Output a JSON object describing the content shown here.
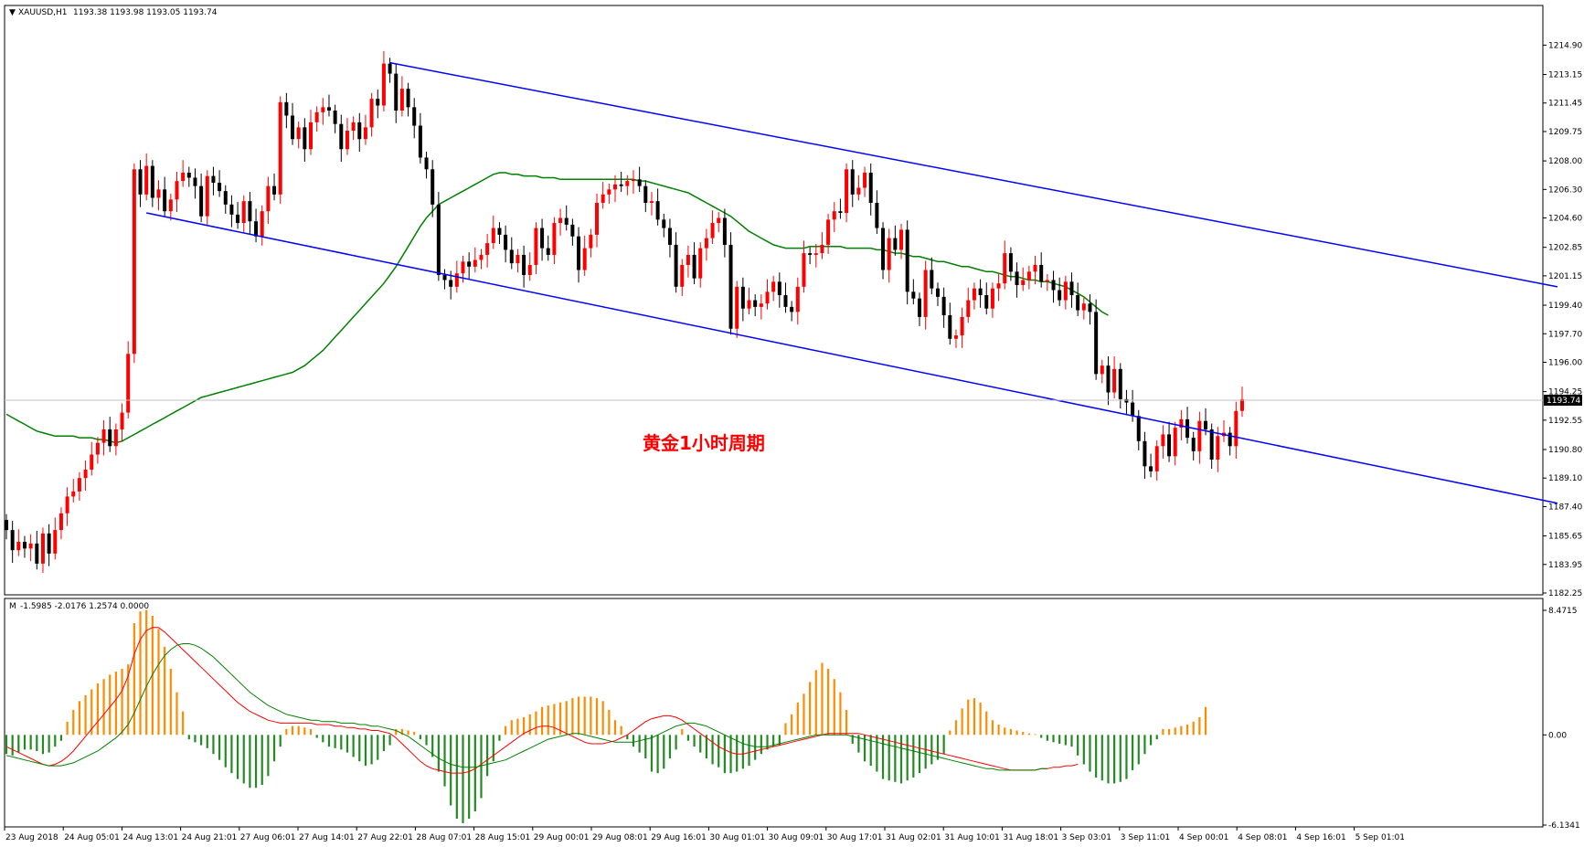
{
  "chart_data": [
    {
      "type": "candlestick",
      "symbol_label": "XAUUSD,H1",
      "ohlc_header": "1193.38 1193.98 1193.05 1193.74",
      "annotation": "黄金1小时周期",
      "current_price": 1193.74,
      "current_price_label": "1193.74",
      "ylim": [
        1182.25,
        1216.5
      ],
      "yticks": [
        "1214.90",
        "1213.15",
        "1211.45",
        "1209.75",
        "1208.00",
        "1206.30",
        "1204.60",
        "1202.85",
        "1201.15",
        "1199.40",
        "1197.70",
        "1196.00",
        "1194.25",
        "1192.55",
        "1190.80",
        "1189.10",
        "1187.40",
        "1185.65",
        "1183.95",
        "1182.25"
      ],
      "xticks": [
        "23 Aug 2018",
        "24 Aug 05:01",
        "24 Aug 13:01",
        "24 Aug 21:01",
        "27 Aug 06:01",
        "27 Aug 14:01",
        "27 Aug 22:01",
        "28 Aug 07:01",
        "28 Aug 15:01",
        "29 Aug 00:01",
        "29 Aug 08:01",
        "29 Aug 16:01",
        "30 Aug 01:01",
        "30 Aug 09:01",
        "30 Aug 17:01",
        "31 Aug 02:01",
        "31 Aug 10:01",
        "31 Aug 18:01",
        "3 Sep 03:01",
        "3 Sep 11:01",
        "4 Sep 00:01",
        "4 Sep 08:01",
        "4 Sep 16:01",
        "5 Sep 01:01"
      ],
      "up_color": "#ff0000",
      "down_color": "#000000",
      "closes": [
        1186.0,
        1184.8,
        1185.3,
        1184.9,
        1185.2,
        1184.0,
        1185.8,
        1184.6,
        1186.0,
        1187.0,
        1188.0,
        1188.3,
        1189.1,
        1189.6,
        1190.5,
        1191.2,
        1192.0,
        1191.0,
        1192.0,
        1193.0,
        1196.5,
        1207.5,
        1206.0,
        1207.7,
        1205.8,
        1206.3,
        1205.0,
        1205.7,
        1206.8,
        1207.3,
        1207.0,
        1206.5,
        1204.7,
        1207.1,
        1206.7,
        1206.2,
        1205.4,
        1204.8,
        1204.3,
        1205.6,
        1204.4,
        1203.5,
        1205.0,
        1206.5,
        1206.0,
        1211.5,
        1210.7,
        1209.3,
        1210.0,
        1208.7,
        1210.3,
        1210.9,
        1211.2,
        1211.0,
        1210.2,
        1208.7,
        1209.8,
        1210.3,
        1209.3,
        1210.0,
        1211.7,
        1211.3,
        1213.8,
        1213.2,
        1211.0,
        1212.3,
        1211.2,
        1210.1,
        1208.2,
        1207.5,
        1205.4,
        1201.2,
        1200.9,
        1200.5,
        1201.3,
        1202.0,
        1201.7,
        1202.1,
        1202.4,
        1203.1,
        1204.0,
        1203.6,
        1202.7,
        1201.9,
        1202.4,
        1201.2,
        1201.8,
        1204.0,
        1202.8,
        1202.4,
        1204.3,
        1204.6,
        1204.2,
        1203.5,
        1201.5,
        1202.8,
        1203.6,
        1205.5,
        1206.0,
        1206.3,
        1206.6,
        1206.5,
        1206.8,
        1206.9,
        1206.5,
        1205.5,
        1205.6,
        1204.5,
        1204.0,
        1203.0,
        1200.5,
        1201.8,
        1202.4,
        1201.0,
        1202.8,
        1203.4,
        1204.3,
        1204.6,
        1203.0,
        1198.0,
        1200.5,
        1199.2,
        1199.7,
        1199.3,
        1199.5,
        1200.2,
        1200.8,
        1200.0,
        1199.3,
        1199.0,
        1200.5,
        1202.5,
        1202.4,
        1202.5,
        1203.0,
        1204.5,
        1205.0,
        1204.9,
        1207.5,
        1206.0,
        1206.4,
        1207.3,
        1205.5,
        1204.0,
        1201.5,
        1203.4,
        1202.7,
        1203.9,
        1200.2,
        1199.8,
        1198.7,
        1201.5,
        1200.4,
        1199.9,
        1198.8,
        1197.4,
        1197.6,
        1198.7,
        1199.7,
        1200.4,
        1200.0,
        1199.2,
        1200.4,
        1200.7,
        1202.5,
        1201.4,
        1200.6,
        1200.9,
        1201.4,
        1201.8,
        1200.8,
        1200.9,
        1200.3,
        1199.7,
        1200.8,
        1200.0,
        1199.1,
        1199.5,
        1199.0,
        1195.3,
        1195.8,
        1194.2,
        1195.6,
        1193.8,
        1193.6,
        1192.8,
        1191.3,
        1189.8,
        1189.5,
        1191.0,
        1191.7,
        1190.4,
        1192.1,
        1192.6,
        1191.5,
        1190.7,
        1192.5,
        1192.0,
        1190.2,
        1191.6,
        1191.8,
        1191.0,
        1193.1,
        1193.8
      ],
      "ma_type": "moving average",
      "ma_color": "#008000",
      "ma_values": [
        1192.9,
        1192.7,
        1192.5,
        1192.3,
        1192.1,
        1191.9,
        1191.8,
        1191.7,
        1191.6,
        1191.6,
        1191.6,
        1191.6,
        1191.5,
        1191.5,
        1191.5,
        1191.4,
        1191.4,
        1191.3,
        1191.2,
        1191.3,
        1191.5,
        1191.7,
        1191.9,
        1192.1,
        1192.3,
        1192.5,
        1192.7,
        1192.9,
        1193.1,
        1193.3,
        1193.5,
        1193.7,
        1193.9,
        1194.0,
        1194.1,
        1194.2,
        1194.3,
        1194.4,
        1194.5,
        1194.6,
        1194.7,
        1194.8,
        1194.9,
        1195.0,
        1195.1,
        1195.2,
        1195.3,
        1195.4,
        1195.6,
        1195.8,
        1196.1,
        1196.4,
        1196.7,
        1197.1,
        1197.5,
        1197.9,
        1198.3,
        1198.7,
        1199.1,
        1199.5,
        1199.9,
        1200.3,
        1200.7,
        1201.2,
        1201.7,
        1202.3,
        1202.9,
        1203.5,
        1204.1,
        1204.6,
        1205.0,
        1205.4,
        1205.6,
        1205.8,
        1206.0,
        1206.2,
        1206.4,
        1206.6,
        1206.8,
        1207.0,
        1207.2,
        1207.3,
        1207.3,
        1207.2,
        1207.2,
        1207.1,
        1207.1,
        1207.1,
        1207.0,
        1207.0,
        1207.0,
        1206.9,
        1206.9,
        1206.9,
        1206.9,
        1206.9,
        1206.9,
        1206.9,
        1206.9,
        1206.9,
        1206.9,
        1206.9,
        1206.9,
        1206.9,
        1206.8,
        1206.8,
        1206.7,
        1206.6,
        1206.5,
        1206.4,
        1206.3,
        1206.2,
        1206.1,
        1205.9,
        1205.7,
        1205.5,
        1205.3,
        1205.1,
        1204.9,
        1204.7,
        1204.4,
        1204.1,
        1203.8,
        1203.6,
        1203.4,
        1203.2,
        1203.0,
        1202.9,
        1202.8,
        1202.8,
        1202.8,
        1202.8,
        1202.9,
        1202.9,
        1202.9,
        1202.9,
        1202.9,
        1202.9,
        1202.8,
        1202.8,
        1202.8,
        1202.8,
        1202.8,
        1202.7,
        1202.7,
        1202.6,
        1202.5,
        1202.5,
        1202.4,
        1202.3,
        1202.3,
        1202.2,
        1202.1,
        1202.0,
        1202.0,
        1201.9,
        1201.8,
        1201.7,
        1201.7,
        1201.6,
        1201.5,
        1201.4,
        1201.4,
        1201.3,
        1201.2,
        1201.1,
        1201.1,
        1201.0,
        1200.9,
        1200.9,
        1200.8,
        1200.8,
        1200.7,
        1200.6,
        1200.5,
        1200.3,
        1200.1,
        1199.9,
        1199.6,
        1199.3,
        1199.0,
        1198.8
      ],
      "channel_color": "#0000ff",
      "channel_lines": [
        {
          "x1": 63,
          "y1": 1213.85,
          "x2": 254.8,
          "y2": 1200.5
        },
        {
          "x1": 23,
          "y1": 1204.9,
          "x2": 254.8,
          "y2": 1187.6
        }
      ]
    },
    {
      "type": "macd",
      "label": "M",
      "header_values": "-1.5985 -2.0176 1.2574 0.0000",
      "ylim": [
        -6.1341,
        8.4715
      ],
      "yticks": [
        "8.4715",
        "0.00",
        "-6.1341"
      ],
      "histogram": [
        -1.3,
        -1.4,
        -1.2,
        -1.0,
        -1.0,
        -1.1,
        -1.3,
        -1.2,
        -0.8,
        -0.4,
        0.9,
        1.7,
        2.3,
        2.7,
        3.1,
        3.5,
        3.8,
        4.1,
        4.3,
        4.5,
        4.8,
        7.6,
        8.4,
        8.5,
        8.1,
        7.2,
        6.0,
        4.5,
        2.9,
        1.6,
        -0.3,
        -0.5,
        -0.7,
        -0.9,
        -1.3,
        -1.7,
        -2.2,
        -2.6,
        -3.0,
        -3.3,
        -3.6,
        -3.6,
        -3.4,
        -2.8,
        -1.8,
        -0.8,
        0.4,
        0.6,
        0.6,
        0.5,
        0.4,
        -0.2,
        -0.5,
        -0.8,
        -0.9,
        -1.0,
        -1.2,
        -1.5,
        -1.8,
        -2.1,
        -2.0,
        -1.7,
        -1.1,
        -0.7,
        0.4,
        0.4,
        0.3,
        0.2,
        -0.3,
        -0.7,
        -1.5,
        -2.5,
        -3.5,
        -4.8,
        -5.7,
        -6.0,
        -5.7,
        -5.2,
        -4.3,
        -2.8,
        -1.8,
        -0.4,
        0.6,
        1.0,
        1.1,
        1.2,
        1.4,
        1.6,
        1.9,
        2.0,
        2.1,
        2.2,
        2.3,
        2.5,
        2.6,
        2.6,
        2.6,
        2.5,
        2.3,
        1.7,
        1.0,
        0.6,
        -0.3,
        -0.8,
        -1.2,
        -1.6,
        -2.5,
        -2.6,
        -2.3,
        -1.6,
        -1.0,
        0.4,
        -0.4,
        -0.8,
        -1.2,
        -1.6,
        -2.0,
        -2.2,
        -2.6,
        -2.6,
        -2.5,
        -2.3,
        -2.1,
        -1.7,
        -1.3,
        -1.0,
        -0.8,
        -0.7,
        0.8,
        1.4,
        2.2,
        2.8,
        3.6,
        4.4,
        4.9,
        4.5,
        3.8,
        2.9,
        1.7,
        -0.6,
        -1.2,
        -1.8,
        -2.1,
        -2.5,
        -3.0,
        -3.1,
        -3.2,
        -3.3,
        -3.1,
        -2.9,
        -2.6,
        -2.3,
        -2.0,
        -1.7,
        -1.3,
        0.3,
        1.0,
        1.8,
        2.4,
        2.5,
        2.2,
        1.6,
        1.0,
        0.7,
        0.5,
        0.4,
        0.3,
        0.2,
        0.1,
        0.05,
        -0.2,
        -0.4,
        -0.5,
        -0.6,
        -0.7,
        -0.8,
        -1.4,
        -2.0,
        -2.5,
        -2.9,
        -3.1,
        -3.3,
        -3.3,
        -3.2,
        -3.0,
        -2.4,
        -2.0,
        -1.3,
        -0.7,
        -0.3,
        0.4,
        0.4,
        0.5,
        0.6,
        0.7,
        0.9,
        1.2,
        1.9
      ],
      "hist_up_color": "#ff8c00",
      "hist_down_color": "#228b22",
      "macd_line": [
        -0.8,
        -1.0,
        -1.2,
        -1.4,
        -1.6,
        -1.8,
        -2.0,
        -2.1,
        -2.0,
        -1.8,
        -1.5,
        -1.1,
        -0.6,
        -0.1,
        0.4,
        0.9,
        1.4,
        1.9,
        2.4,
        3.0,
        4.0,
        5.5,
        6.5,
        7.1,
        7.3,
        7.3,
        7.0,
        6.6,
        6.2,
        5.8,
        5.4,
        5.0,
        4.6,
        4.2,
        3.8,
        3.4,
        3.0,
        2.6,
        2.2,
        1.9,
        1.6,
        1.4,
        1.2,
        1.0,
        0.9,
        0.8,
        0.8,
        0.8,
        0.8,
        0.8,
        0.8,
        0.7,
        0.7,
        0.7,
        0.6,
        0.6,
        0.5,
        0.5,
        0.4,
        0.4,
        0.3,
        0.3,
        0.2,
        0.1,
        -0.2,
        -0.6,
        -1.0,
        -1.4,
        -1.8,
        -2.1,
        -2.3,
        -2.4,
        -2.5,
        -2.6,
        -2.6,
        -2.6,
        -2.5,
        -2.3,
        -2.0,
        -1.7,
        -1.4,
        -1.1,
        -0.8,
        -0.5,
        -0.2,
        0.1,
        0.3,
        0.5,
        0.6,
        0.6,
        0.5,
        0.3,
        0.1,
        -0.1,
        -0.3,
        -0.5,
        -0.6,
        -0.6,
        -0.6,
        -0.5,
        -0.4,
        -0.2,
        0.0,
        0.3,
        0.6,
        0.9,
        1.1,
        1.2,
        1.3,
        1.3,
        1.2,
        1.0,
        0.7,
        0.4,
        0.1,
        -0.2,
        -0.5,
        -0.8,
        -1.0,
        -1.2,
        -1.3,
        -1.3,
        -1.2,
        -1.1,
        -1.0,
        -0.9,
        -0.8,
        -0.7,
        -0.6,
        -0.5,
        -0.4,
        -0.3,
        -0.2,
        -0.1,
        0.0,
        0.1,
        0.1,
        0.1,
        0.1,
        0.1,
        0.1,
        0.0,
        -0.1,
        -0.2,
        -0.3,
        -0.4,
        -0.5,
        -0.6,
        -0.7,
        -0.8,
        -0.9,
        -1.0,
        -1.1,
        -1.2,
        -1.3,
        -1.4,
        -1.5,
        -1.6,
        -1.7,
        -1.8,
        -1.9,
        -2.0,
        -2.1,
        -2.2,
        -2.3,
        -2.4,
        -2.4,
        -2.4,
        -2.4,
        -2.4,
        -2.3,
        -2.3,
        -2.2,
        -2.2,
        -2.1,
        -2.1,
        -2.0
      ],
      "signal_line": [
        -1.4,
        -1.5,
        -1.6,
        -1.7,
        -1.8,
        -1.9,
        -2.0,
        -2.1,
        -2.1,
        -2.1,
        -2.0,
        -1.9,
        -1.7,
        -1.5,
        -1.3,
        -1.1,
        -0.8,
        -0.5,
        -0.2,
        0.2,
        0.7,
        1.5,
        2.4,
        3.3,
        4.1,
        4.8,
        5.4,
        5.8,
        6.1,
        6.2,
        6.2,
        6.1,
        5.9,
        5.6,
        5.3,
        4.9,
        4.5,
        4.1,
        3.7,
        3.3,
        2.9,
        2.6,
        2.3,
        2.0,
        1.8,
        1.6,
        1.4,
        1.3,
        1.2,
        1.1,
        1.0,
        1.0,
        0.9,
        0.9,
        0.9,
        0.8,
        0.8,
        0.8,
        0.7,
        0.7,
        0.6,
        0.6,
        0.5,
        0.4,
        0.3,
        0.1,
        -0.1,
        -0.4,
        -0.7,
        -1.0,
        -1.3,
        -1.6,
        -1.8,
        -2.0,
        -2.1,
        -2.2,
        -2.2,
        -2.2,
        -2.1,
        -2.0,
        -1.9,
        -1.8,
        -1.7,
        -1.5,
        -1.3,
        -1.1,
        -0.9,
        -0.7,
        -0.5,
        -0.3,
        -0.2,
        -0.1,
        0.0,
        0.1,
        0.1,
        0.0,
        -0.1,
        -0.2,
        -0.3,
        -0.4,
        -0.5,
        -0.5,
        -0.5,
        -0.5,
        -0.4,
        -0.3,
        -0.2,
        0.0,
        0.2,
        0.4,
        0.6,
        0.7,
        0.8,
        0.8,
        0.7,
        0.6,
        0.4,
        0.2,
        0.0,
        -0.2,
        -0.4,
        -0.6,
        -0.7,
        -0.8,
        -0.8,
        -0.8,
        -0.7,
        -0.6,
        -0.5,
        -0.4,
        -0.3,
        -0.2,
        -0.1,
        0.0,
        0.0,
        0.0,
        0.0,
        0.0,
        0.0,
        -0.1,
        -0.2,
        -0.3,
        -0.4,
        -0.5,
        -0.6,
        -0.7,
        -0.8,
        -0.9,
        -1.0,
        -1.1,
        -1.2,
        -1.3,
        -1.4,
        -1.5,
        -1.6,
        -1.7,
        -1.8,
        -1.9,
        -2.0,
        -2.1,
        -2.2,
        -2.3,
        -2.3,
        -2.4,
        -2.4,
        -2.4,
        -2.4,
        -2.4,
        -2.4,
        -2.4,
        -2.3,
        -2.3
      ],
      "macd_color": "#ff0000",
      "signal_color": "#008000"
    }
  ]
}
